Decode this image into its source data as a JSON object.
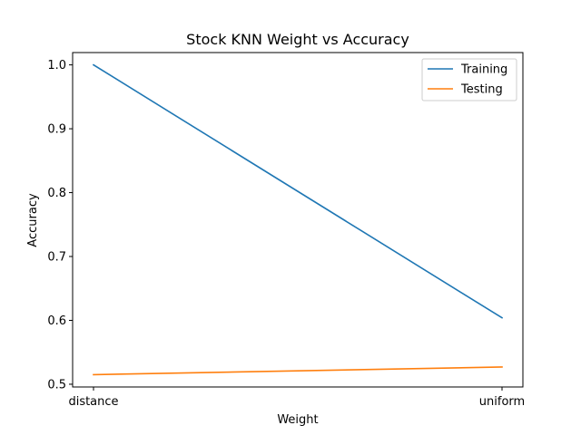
{
  "chart_data": {
    "type": "line",
    "title": "Stock KNN Weight vs Accuracy",
    "xlabel": "Weight",
    "ylabel": "Accuracy",
    "categories": [
      "distance",
      "uniform"
    ],
    "series": [
      {
        "name": "Training",
        "values": [
          1.0,
          0.604
        ],
        "color": "#1f77b4"
      },
      {
        "name": "Testing",
        "values": [
          0.515,
          0.527
        ],
        "color": "#ff7f0e"
      }
    ],
    "yticks": [
      {
        "value": 0.5,
        "label": "0.5"
      },
      {
        "value": 0.6,
        "label": "0.6"
      },
      {
        "value": 0.7,
        "label": "0.7"
      },
      {
        "value": 0.8,
        "label": "0.8"
      },
      {
        "value": 0.9,
        "label": "0.9"
      },
      {
        "value": 1.0,
        "label": "1.0"
      }
    ],
    "ylim": [
      0.4957,
      1.0193
    ],
    "grid": false,
    "legend_position": "top-right"
  }
}
